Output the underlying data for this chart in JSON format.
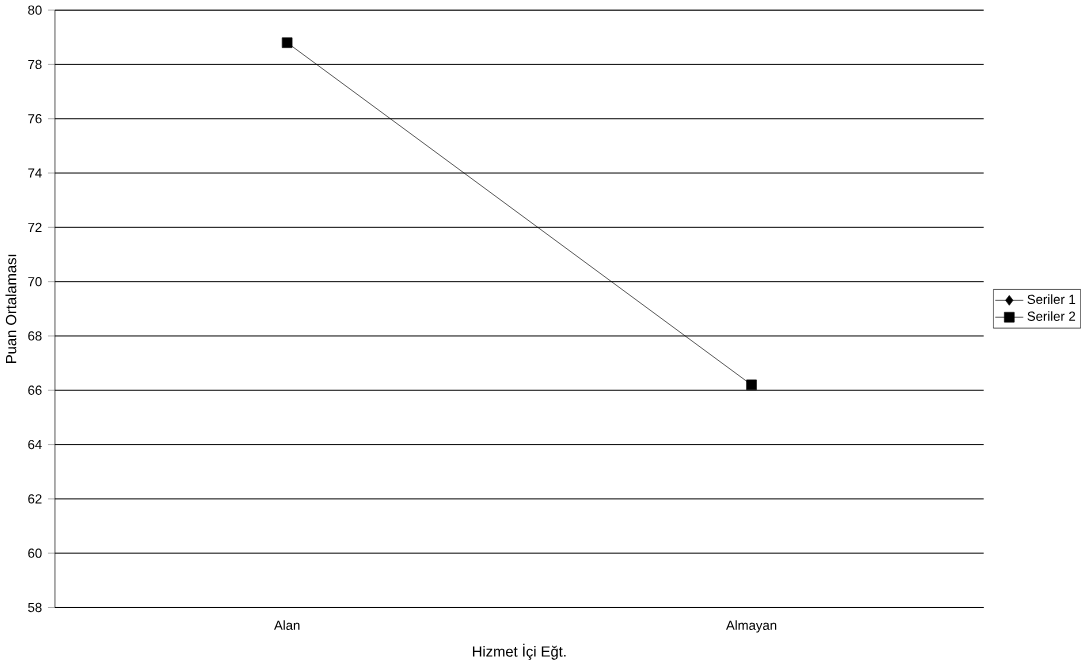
{
  "chart_data": {
    "type": "line",
    "xlabel": "Hizmet İçi Eğt.",
    "ylabel": "Puan Ortalaması",
    "categories": [
      "Alan",
      "Almayan"
    ],
    "series": [
      {
        "name": "Seriler 1",
        "color": "#000000",
        "marker": "diamond",
        "values": [
          null,
          null
        ]
      },
      {
        "name": "Seriler 2",
        "color": "#000000",
        "marker": "square",
        "values": [
          78.8,
          66.2
        ]
      }
    ],
    "ylim": [
      58,
      80
    ],
    "yticks": [
      58,
      60,
      62,
      64,
      66,
      68,
      70,
      72,
      74,
      76,
      78,
      80
    ],
    "grid": "y",
    "legend": "right",
    "line_style": "solid"
  }
}
